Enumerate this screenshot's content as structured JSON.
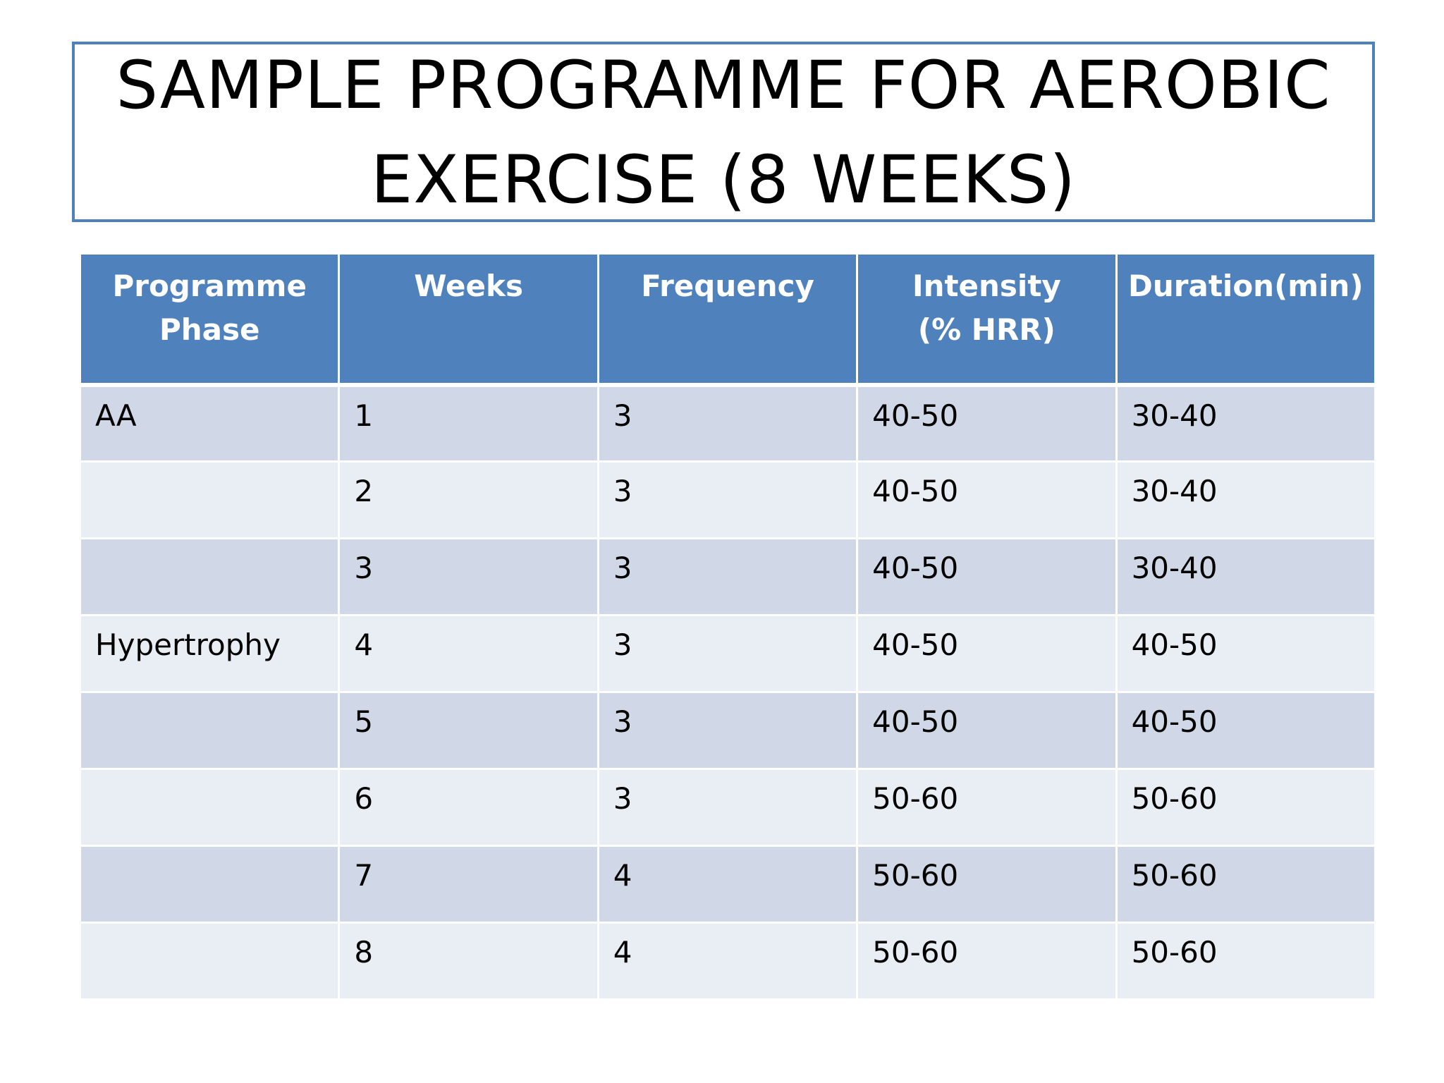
{
  "title": "SAMPLE PROGRAMME FOR AEROBIC EXERCISE (8 WEEKS)",
  "table": {
    "headers": [
      "Programme\nPhase",
      "Weeks",
      "Frequency",
      "Intensity\n(% HRR)",
      "Duration(min)"
    ],
    "rows": [
      [
        "AA",
        "1",
        "3",
        "40-50",
        "30-40"
      ],
      [
        "",
        "2",
        "3",
        "40-50",
        "30-40"
      ],
      [
        "",
        "3",
        "3",
        "40-50",
        "30-40"
      ],
      [
        "Hypertrophy",
        "4",
        "3",
        "40-50",
        "40-50"
      ],
      [
        "",
        "5",
        "3",
        "40-50",
        "40-50"
      ],
      [
        "",
        "6",
        "3",
        "50-60",
        "50-60"
      ],
      [
        "",
        "7",
        "4",
        "50-60",
        "50-60"
      ],
      [
        "",
        "8",
        "4",
        "50-60",
        "50-60"
      ]
    ]
  },
  "colors": {
    "header_bg": "#4f81bd",
    "row_dark": "#d0d8e8",
    "row_light": "#e9edf4",
    "title_border": "#4f81bd"
  }
}
